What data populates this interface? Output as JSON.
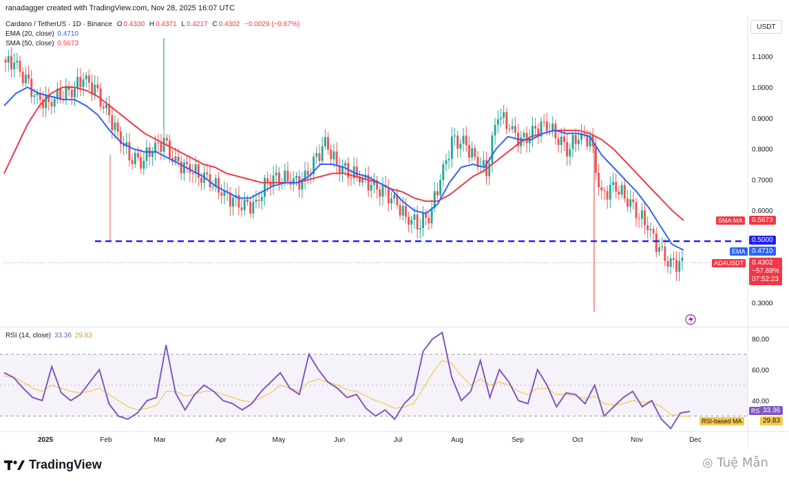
{
  "header": {
    "author_line": "ranadagger created with TradingView.com, Nov 28, 2025 16:07 UTC",
    "symbol": "Cardano / TetherUS · 1D · Binance",
    "ohlc": {
      "o_label": "O",
      "o": "0.4330",
      "h_label": "H",
      "h": "0.4371",
      "l_label": "L",
      "l": "0.4217",
      "c_label": "C",
      "c": "0.4302",
      "change": "−0.0029 (−0.67%)"
    },
    "ema_legend": "EMA (20, close)",
    "ema_value": "0.4710",
    "sma_legend": "SMA (50, close)",
    "sma_value": "0.5673",
    "rsi_legend": "RSI (14, close)",
    "rsi_value": "33.36",
    "rsi_ma_value": "29.83"
  },
  "currency_button": "USDT",
  "labels": {
    "sma_tag": "SMA:MA",
    "sma_price": "0.5673",
    "level_price": "0.5000",
    "ema_tag": "EMA",
    "ema_price": "0.4710",
    "symbol_tag": "ADAUSDT",
    "last_price": "0.4302",
    "last_change": "−57.89%",
    "countdown": "07:52:23",
    "rsi_tag": "RSI",
    "rsi_price": "33.36",
    "rsi_ma_tag": "RSI-based MA",
    "rsi_ma_price": "29.83"
  },
  "branding": {
    "logo_text": "TradingView",
    "watermark": "Tuệ Mẫn"
  },
  "colors": {
    "up": "#26a69a",
    "down": "#ef5350",
    "ema": "#2962ff",
    "sma": "#f23645",
    "level": "#1e1eff",
    "rsi": "#7e57c2",
    "rsi_ma": "#f7c948",
    "last": "#f23645"
  },
  "chart_data": [
    {
      "type": "candlestick",
      "title": "Cardano / TetherUS · 1D · Binance",
      "price_axis_ticks": [
        "1.1000",
        "1.0000",
        "0.9000",
        "0.8000",
        "0.7000",
        "0.6000",
        "0.3000"
      ],
      "time_axis_ticks": [
        "2025",
        "Feb",
        "Mar",
        "Apr",
        "May",
        "Jun",
        "Jul",
        "Aug",
        "Sep",
        "Oct",
        "Nov",
        "Dec"
      ],
      "horizontal_level": 0.5,
      "weekly_closes_approx": [
        1.08,
        1.02,
        0.96,
        0.95,
        0.98,
        0.99,
        1.03,
        0.99,
        0.92,
        0.85,
        0.78,
        0.76,
        0.8,
        0.82,
        0.75,
        0.74,
        0.72,
        0.7,
        0.66,
        0.63,
        0.61,
        0.62,
        0.7,
        0.71,
        0.7,
        0.69,
        0.75,
        0.82,
        0.75,
        0.73,
        0.71,
        0.68,
        0.66,
        0.63,
        0.58,
        0.56,
        0.58,
        0.7,
        0.82,
        0.82,
        0.77,
        0.73,
        0.92,
        0.87,
        0.82,
        0.85,
        0.88,
        0.85,
        0.8,
        0.84,
        0.83,
        0.64,
        0.68,
        0.65,
        0.6,
        0.55,
        0.47,
        0.42,
        0.43
      ],
      "ema20": [
        0.94,
        0.98,
        1.0,
        0.98,
        0.97,
        0.96,
        0.96,
        0.94,
        0.91,
        0.86,
        0.82,
        0.8,
        0.79,
        0.79,
        0.77,
        0.75,
        0.73,
        0.71,
        0.68,
        0.66,
        0.64,
        0.64,
        0.66,
        0.68,
        0.69,
        0.69,
        0.71,
        0.75,
        0.75,
        0.74,
        0.72,
        0.71,
        0.69,
        0.67,
        0.63,
        0.6,
        0.59,
        0.62,
        0.69,
        0.74,
        0.75,
        0.74,
        0.8,
        0.84,
        0.83,
        0.83,
        0.85,
        0.86,
        0.85,
        0.85,
        0.84,
        0.78,
        0.74,
        0.7,
        0.66,
        0.61,
        0.55,
        0.49,
        0.471
      ],
      "sma50": [
        0.72,
        0.8,
        0.88,
        0.94,
        0.98,
        1.0,
        1.0,
        0.99,
        0.97,
        0.94,
        0.91,
        0.88,
        0.85,
        0.83,
        0.81,
        0.79,
        0.77,
        0.75,
        0.74,
        0.72,
        0.71,
        0.7,
        0.69,
        0.69,
        0.69,
        0.69,
        0.7,
        0.71,
        0.72,
        0.72,
        0.71,
        0.7,
        0.69,
        0.67,
        0.66,
        0.64,
        0.63,
        0.63,
        0.65,
        0.68,
        0.71,
        0.73,
        0.76,
        0.79,
        0.82,
        0.84,
        0.85,
        0.86,
        0.86,
        0.86,
        0.85,
        0.83,
        0.8,
        0.76,
        0.72,
        0.68,
        0.64,
        0.6,
        0.5673
      ],
      "last_price": 0.4302
    },
    {
      "type": "line",
      "title": "RSI (14, close)",
      "ticks": [
        "80.00",
        "60.00",
        "40.00"
      ],
      "band": [
        30,
        70
      ],
      "rsi": [
        58,
        55,
        48,
        42,
        40,
        62,
        45,
        40,
        44,
        52,
        60,
        38,
        30,
        28,
        32,
        40,
        42,
        76,
        45,
        34,
        44,
        50,
        46,
        40,
        38,
        34,
        38,
        46,
        52,
        58,
        48,
        44,
        70,
        60,
        52,
        48,
        42,
        44,
        35,
        30,
        34,
        28,
        38,
        44,
        72,
        80,
        84,
        55,
        40,
        46,
        66,
        42,
        60,
        52,
        40,
        38,
        60,
        50,
        36,
        45,
        44,
        38,
        50,
        30,
        36,
        42,
        46,
        36,
        40,
        28,
        22,
        32,
        33
      ],
      "rsi_ma": [
        56,
        55,
        52,
        48,
        46,
        50,
        48,
        46,
        45,
        46,
        48,
        44,
        40,
        36,
        34,
        35,
        37,
        46,
        46,
        43,
        44,
        46,
        46,
        44,
        42,
        40,
        39,
        42,
        45,
        50,
        48,
        46,
        52,
        54,
        52,
        50,
        47,
        46,
        43,
        40,
        38,
        35,
        36,
        38,
        48,
        58,
        66,
        64,
        56,
        50,
        54,
        50,
        52,
        50,
        46,
        44,
        48,
        48,
        44,
        44,
        43,
        41,
        43,
        38,
        37,
        38,
        40,
        39,
        39,
        36,
        31,
        30,
        29.83
      ]
    }
  ]
}
